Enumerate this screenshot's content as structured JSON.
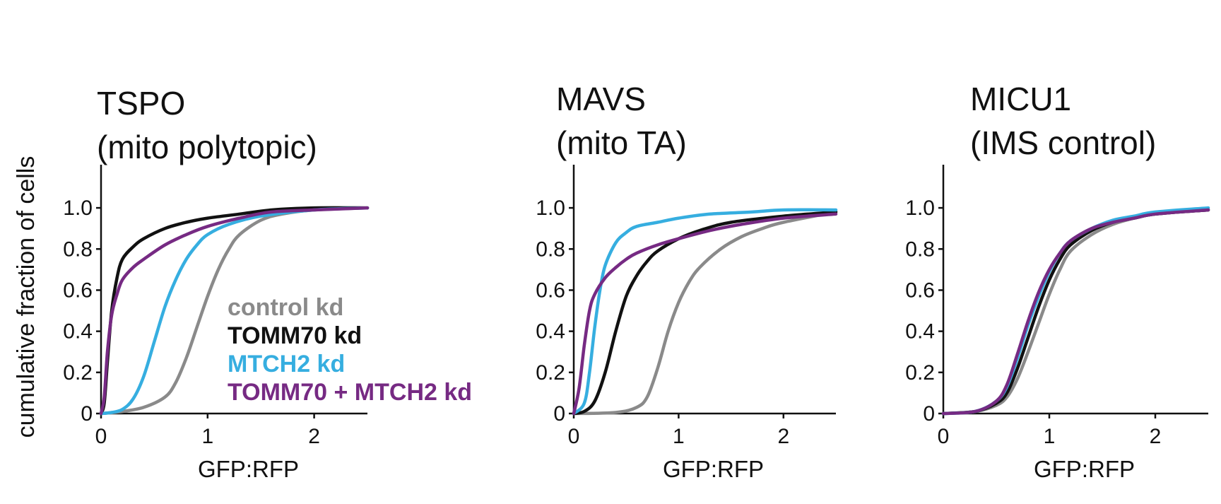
{
  "figure": {
    "ylabel": "cumulative fraction of cells"
  },
  "colors": {
    "control kd": "#8a8a8a",
    "TOMM70 kd": "#111111",
    "MTCH2 kd": "#36aee0",
    "TOMM70 + MTCH2 kd": "#762a83"
  },
  "chart_data": [
    {
      "type": "line",
      "title": "TSPO",
      "subtitle": "(mito polytopic)",
      "xlabel": "GFP:RFP",
      "ylabel": "cumulative fraction of cells",
      "xlim": [
        0,
        2.5
      ],
      "ylim": [
        0,
        1.1
      ],
      "xticks": [
        "0",
        "1",
        "2"
      ],
      "yticks": [
        "0",
        "0.2",
        "0.4",
        "0.6",
        "0.8",
        "1.0"
      ],
      "legend": [
        "control kd",
        "TOMM70 kd",
        "MTCH2 kd",
        "TOMM70 + MTCH2 kd"
      ],
      "legend_position": "lower-right",
      "series": [
        {
          "name": "control kd",
          "color": "#8a8a8a",
          "x": [
            0,
            0.2,
            0.4,
            0.6,
            0.7,
            0.8,
            0.9,
            1.0,
            1.1,
            1.2,
            1.3,
            1.5,
            1.7,
            2.0,
            2.5
          ],
          "y": [
            0,
            0.01,
            0.03,
            0.08,
            0.15,
            0.27,
            0.42,
            0.57,
            0.7,
            0.8,
            0.87,
            0.94,
            0.97,
            0.99,
            1.0
          ]
        },
        {
          "name": "TOMM70 kd",
          "color": "#111111",
          "x": [
            0,
            0.03,
            0.06,
            0.1,
            0.15,
            0.2,
            0.3,
            0.4,
            0.6,
            0.8,
            1.0,
            1.3,
            1.6,
            2.0,
            2.5
          ],
          "y": [
            0,
            0.05,
            0.25,
            0.5,
            0.66,
            0.75,
            0.81,
            0.85,
            0.9,
            0.93,
            0.95,
            0.97,
            0.99,
            1.0,
            1.0
          ]
        },
        {
          "name": "MTCH2 kd",
          "color": "#36aee0",
          "x": [
            0,
            0.1,
            0.2,
            0.3,
            0.4,
            0.5,
            0.6,
            0.7,
            0.8,
            0.9,
            1.0,
            1.2,
            1.5,
            2.0,
            2.5
          ],
          "y": [
            0,
            0.005,
            0.02,
            0.07,
            0.18,
            0.35,
            0.52,
            0.65,
            0.75,
            0.82,
            0.87,
            0.92,
            0.96,
            0.99,
            1.0
          ]
        },
        {
          "name": "TOMM70 + MTCH2 kd",
          "color": "#762a83",
          "x": [
            0,
            0.03,
            0.06,
            0.1,
            0.15,
            0.2,
            0.3,
            0.4,
            0.6,
            0.8,
            1.0,
            1.3,
            1.6,
            2.0,
            2.5
          ],
          "y": [
            0,
            0.08,
            0.3,
            0.48,
            0.58,
            0.65,
            0.71,
            0.75,
            0.82,
            0.87,
            0.91,
            0.95,
            0.98,
            0.99,
            1.0
          ]
        }
      ]
    },
    {
      "type": "line",
      "title": "MAVS",
      "subtitle": "(mito TA)",
      "xlabel": "GFP:RFP",
      "ylabel": "",
      "xlim": [
        0,
        2.5
      ],
      "ylim": [
        0,
        1.1
      ],
      "xticks": [
        "0",
        "1",
        "2"
      ],
      "yticks": [
        "0",
        "0.2",
        "0.4",
        "0.6",
        "0.8",
        "1.0"
      ],
      "series": [
        {
          "name": "control kd",
          "color": "#8a8a8a",
          "x": [
            0,
            0.4,
            0.6,
            0.7,
            0.8,
            0.9,
            1.0,
            1.1,
            1.2,
            1.4,
            1.6,
            1.8,
            2.0,
            2.5
          ],
          "y": [
            0,
            0.005,
            0.03,
            0.08,
            0.22,
            0.4,
            0.54,
            0.64,
            0.71,
            0.8,
            0.86,
            0.9,
            0.93,
            0.98
          ]
        },
        {
          "name": "TOMM70 kd",
          "color": "#111111",
          "x": [
            0,
            0.1,
            0.2,
            0.3,
            0.4,
            0.5,
            0.6,
            0.7,
            0.8,
            1.0,
            1.2,
            1.5,
            2.0,
            2.5
          ],
          "y": [
            0,
            0.01,
            0.06,
            0.2,
            0.4,
            0.57,
            0.67,
            0.74,
            0.79,
            0.85,
            0.89,
            0.93,
            0.96,
            0.98
          ]
        },
        {
          "name": "MTCH2 kd",
          "color": "#36aee0",
          "x": [
            0,
            0.1,
            0.15,
            0.2,
            0.25,
            0.3,
            0.4,
            0.5,
            0.6,
            0.8,
            1.0,
            1.3,
            1.7,
            2.0,
            2.5
          ],
          "y": [
            0,
            0.05,
            0.2,
            0.42,
            0.6,
            0.72,
            0.83,
            0.88,
            0.91,
            0.93,
            0.95,
            0.97,
            0.98,
            0.99,
            0.99
          ]
        },
        {
          "name": "TOMM70 + MTCH2 kd",
          "color": "#762a83",
          "x": [
            0,
            0.05,
            0.1,
            0.15,
            0.2,
            0.3,
            0.4,
            0.5,
            0.6,
            0.8,
            1.0,
            1.3,
            1.6,
            2.0,
            2.5
          ],
          "y": [
            0,
            0.12,
            0.33,
            0.5,
            0.58,
            0.66,
            0.71,
            0.75,
            0.78,
            0.82,
            0.85,
            0.89,
            0.92,
            0.95,
            0.97
          ]
        }
      ]
    },
    {
      "type": "line",
      "title": "MICU1",
      "subtitle": "(IMS control)",
      "xlabel": "GFP:RFP",
      "ylabel": "",
      "xlim": [
        0,
        2.5
      ],
      "ylim": [
        0,
        1.1
      ],
      "xticks": [
        "0",
        "1",
        "2"
      ],
      "yticks": [
        "0",
        "0.2",
        "0.4",
        "0.6",
        "0.8",
        "1.0"
      ],
      "series": [
        {
          "name": "control kd",
          "color": "#8a8a8a",
          "x": [
            0,
            0.3,
            0.5,
            0.6,
            0.7,
            0.8,
            0.9,
            1.0,
            1.1,
            1.2,
            1.4,
            1.6,
            1.8,
            2.0,
            2.5
          ],
          "y": [
            0,
            0.01,
            0.04,
            0.08,
            0.17,
            0.3,
            0.44,
            0.58,
            0.7,
            0.79,
            0.87,
            0.92,
            0.95,
            0.97,
            0.99
          ]
        },
        {
          "name": "TOMM70 kd",
          "color": "#111111",
          "x": [
            0,
            0.3,
            0.5,
            0.6,
            0.7,
            0.8,
            0.9,
            1.0,
            1.1,
            1.2,
            1.4,
            1.6,
            1.8,
            2.0,
            2.5
          ],
          "y": [
            0,
            0.01,
            0.05,
            0.1,
            0.22,
            0.37,
            0.52,
            0.65,
            0.75,
            0.82,
            0.89,
            0.93,
            0.95,
            0.97,
            0.99
          ]
        },
        {
          "name": "MTCH2 kd",
          "color": "#36aee0",
          "x": [
            0,
            0.3,
            0.5,
            0.6,
            0.7,
            0.8,
            0.9,
            1.0,
            1.1,
            1.2,
            1.4,
            1.6,
            1.8,
            2.0,
            2.5
          ],
          "y": [
            0,
            0.01,
            0.06,
            0.13,
            0.27,
            0.43,
            0.57,
            0.69,
            0.78,
            0.84,
            0.9,
            0.94,
            0.96,
            0.98,
            1.0
          ]
        },
        {
          "name": "TOMM70 + MTCH2 kd",
          "color": "#762a83",
          "x": [
            0,
            0.3,
            0.5,
            0.6,
            0.7,
            0.8,
            0.9,
            1.0,
            1.1,
            1.2,
            1.4,
            1.6,
            1.8,
            2.0,
            2.5
          ],
          "y": [
            0,
            0.01,
            0.06,
            0.14,
            0.29,
            0.45,
            0.59,
            0.7,
            0.78,
            0.84,
            0.9,
            0.93,
            0.95,
            0.97,
            0.99
          ]
        }
      ]
    }
  ]
}
